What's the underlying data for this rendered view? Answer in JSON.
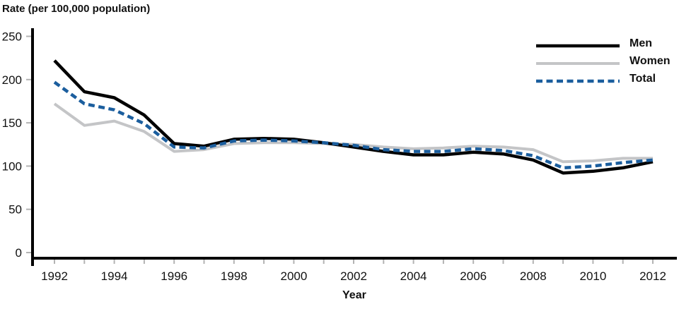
{
  "chart_data": {
    "type": "line",
    "title": "Rate (per 100,000 population)",
    "ylabel": "Rate (per 100,000 population)",
    "xlabel": "Year",
    "x": [
      1992,
      1993,
      1994,
      1995,
      1996,
      1997,
      1998,
      1999,
      2000,
      2001,
      2002,
      2003,
      2004,
      2005,
      2006,
      2007,
      2008,
      2009,
      2010,
      2011,
      2012
    ],
    "x_tick_labels": [
      1992,
      1994,
      1996,
      1998,
      2000,
      2002,
      2004,
      2006,
      2008,
      2010,
      2012
    ],
    "y_ticks": [
      0,
      50,
      100,
      150,
      200,
      250
    ],
    "ylim": [
      0,
      262
    ],
    "xlim": [
      1991.3,
      2012.8
    ],
    "grid": false,
    "legend_position": "top-right",
    "axis_color": "#000000",
    "tick_color": "#b3b3b3",
    "series": [
      {
        "name": "Men",
        "color": "#000000",
        "style": "solid",
        "values": [
          222,
          186,
          179,
          159,
          126,
          123,
          131,
          132,
          131,
          127,
          122,
          117,
          113,
          113,
          116,
          114,
          107,
          92,
          94,
          98,
          105
        ]
      },
      {
        "name": "Women",
        "color": "#c4c5c7",
        "style": "solid",
        "values": [
          172,
          147,
          152,
          140,
          117,
          119,
          126,
          127,
          127,
          126,
          125,
          122,
          120,
          121,
          123,
          122,
          119,
          105,
          106,
          109,
          109
        ]
      },
      {
        "name": "Total",
        "color": "#1b5e9e",
        "style": "dashed",
        "values": [
          197,
          172,
          165,
          149,
          122,
          121,
          129,
          130,
          129,
          127,
          124,
          119,
          117,
          117,
          120,
          118,
          112,
          98,
          100,
          104,
          107
        ]
      }
    ]
  }
}
